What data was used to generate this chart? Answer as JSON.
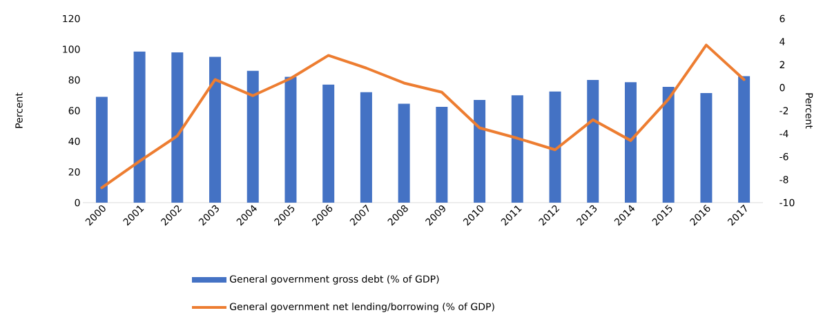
{
  "chart_data": {
    "type": "bar",
    "categories": [
      "2000",
      "2001",
      "2002",
      "2003",
      "2004",
      "2005",
      "2006",
      "2007",
      "2008",
      "2009",
      "2010",
      "2011",
      "2012",
      "2013",
      "2014",
      "2015",
      "2016",
      "2017"
    ],
    "ylabel": "Percent",
    "y2label": "Percent",
    "ylim": [
      0,
      120
    ],
    "yticks": [
      0,
      20,
      40,
      60,
      80,
      100,
      120
    ],
    "y2lim": [
      -10,
      6
    ],
    "y2ticks": [
      -10,
      -8,
      -6,
      -4,
      -2,
      0,
      2,
      4,
      6
    ],
    "legend": "bottom",
    "grid": false,
    "series": [
      {
        "name": "General government gross debt (% of GDP)",
        "color": "#4472c4",
        "values": [
          69,
          98.5,
          98,
          95,
          86,
          82,
          77,
          72,
          64.5,
          62.5,
          67,
          70,
          72.5,
          80,
          78.5,
          75.5,
          71.5,
          82.5
        ]
      },
      {
        "name": "General government net lending/borrowing (% of GDP)",
        "type": "line",
        "axis": "y2",
        "color": "#ed7d31",
        "values": [
          -8.7,
          -6.4,
          -4.2,
          0.7,
          -0.7,
          0.8,
          2.8,
          1.7,
          0.4,
          -0.4,
          -3.5,
          -4.4,
          -5.4,
          -2.8,
          -4.6,
          -1.0,
          3.7,
          0.7
        ]
      }
    ]
  }
}
